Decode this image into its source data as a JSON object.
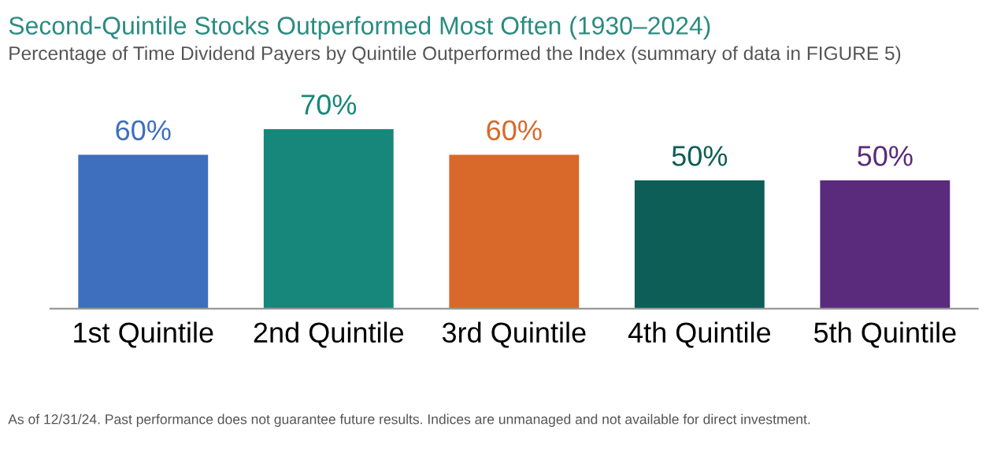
{
  "chart_data": {
    "type": "bar",
    "title": "Second-Quintile Stocks Outperformed Most Often (1930–2024)",
    "subtitle": "Percentage of Time Dividend Payers by Quintile Outperformed the Index (summary of data in FIGURE 5)",
    "categories": [
      "1st Quintile",
      "2nd Quintile",
      "3rd Quintile",
      "4th Quintile",
      "5th Quintile"
    ],
    "values": [
      60,
      70,
      60,
      50,
      50
    ],
    "colors": [
      "#3e6fbe",
      "#16877a",
      "#d8692a",
      "#0c5e56",
      "#5a2a7d"
    ],
    "value_labels": [
      "60%",
      "70%",
      "60%",
      "50%",
      "50%"
    ],
    "tick_labels": "x",
    "grid": false,
    "legend": false,
    "annotations": [
      "As of 12/31/24. Past performance does not guarantee future results. Indices are unmanaged and not available for direct investment."
    ]
  }
}
